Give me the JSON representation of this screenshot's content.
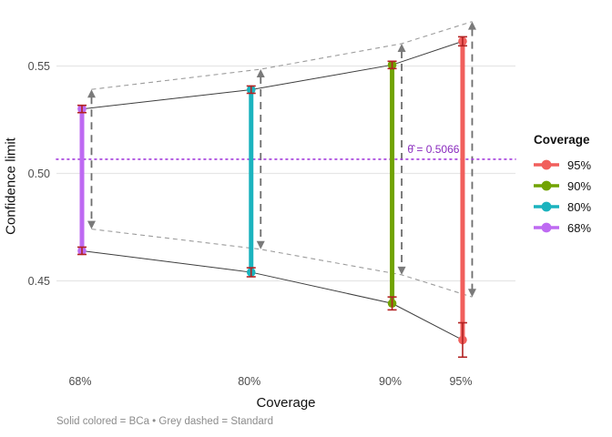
{
  "figure": {
    "x_axis_title": "Coverage",
    "y_axis_title": "Confidence limit",
    "caption": "Solid colored = BCa • Grey dashed = Standard"
  },
  "legend": {
    "title": "Coverage",
    "items": [
      {
        "label": "95%",
        "color": "#F15F5C"
      },
      {
        "label": "90%",
        "color": "#71A301"
      },
      {
        "label": "80%",
        "color": "#1BB3BE"
      },
      {
        "label": "68%",
        "color": "#BE6AF2"
      }
    ]
  },
  "chart_data": {
    "type": "pointrange-intervals",
    "xlabel": "Coverage",
    "ylabel": "Confidence limit",
    "x": [
      68,
      80,
      90,
      95
    ],
    "x_tick_labels": [
      "68%",
      "80%",
      "90%",
      "95%"
    ],
    "y_ticks": [
      0.45,
      0.5,
      0.55
    ],
    "y_tick_labels": [
      "0.45",
      "0.50",
      "0.55"
    ],
    "ylim": [
      0.41,
      0.575
    ],
    "grid": "horizontal-major-only",
    "legend_position": "right",
    "theta_hat": {
      "value": 0.5066,
      "label": "θ̂ = 0.5066",
      "line_style": "dotted",
      "line_color": "#A33BDB",
      "text_color": "#8A2BBE"
    },
    "series": [
      {
        "name": "BCa",
        "style": "solid colored bar with endpoint dots and dark-red Monte-Carlo error whiskers",
        "errorbar_color": "#B22222",
        "connector_color": "#3D3D3D",
        "intervals": [
          {
            "coverage": "68%",
            "x": 68,
            "lower": 0.464,
            "upper": 0.53,
            "lower_mc_err": 0.0017,
            "upper_mc_err": 0.0017,
            "color": "#BE6AF2"
          },
          {
            "coverage": "80%",
            "x": 80,
            "lower": 0.454,
            "upper": 0.539,
            "lower_mc_err": 0.0021,
            "upper_mc_err": 0.0017,
            "color": "#1BB3BE"
          },
          {
            "coverage": "90%",
            "x": 90,
            "lower": 0.4395,
            "upper": 0.5505,
            "lower_mc_err": 0.003,
            "upper_mc_err": 0.0017,
            "color": "#71A301"
          },
          {
            "coverage": "95%",
            "x": 95,
            "lower": 0.4225,
            "upper": 0.5615,
            "lower_mc_err": 0.008,
            "upper_mc_err": 0.0021,
            "color": "#F15F5C"
          }
        ]
      },
      {
        "name": "Standard",
        "style": "grey dashed vertical segment with arrowheads at both ends",
        "color": "#6E6E6E",
        "connector_color": "#9C9C9C",
        "intervals": [
          {
            "coverage": "68%",
            "x": 68,
            "lower": 0.4741,
            "upper": 0.5391
          },
          {
            "coverage": "80%",
            "x": 80,
            "lower": 0.4647,
            "upper": 0.5485
          },
          {
            "coverage": "90%",
            "x": 90,
            "lower": 0.4528,
            "upper": 0.5604
          },
          {
            "coverage": "95%",
            "x": 95,
            "lower": 0.4425,
            "upper": 0.5707
          }
        ]
      }
    ]
  }
}
